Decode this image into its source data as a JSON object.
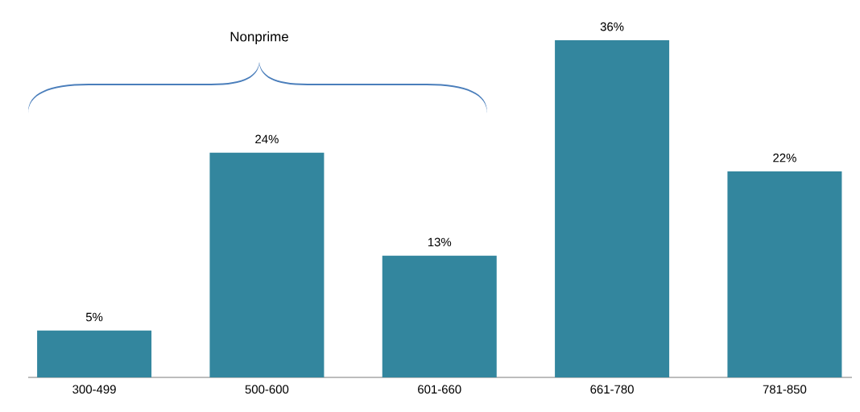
{
  "chart_data": {
    "type": "bar",
    "categories": [
      "300-499",
      "500-600",
      "601-660",
      "661-780",
      "781-850"
    ],
    "values": [
      5,
      24,
      13,
      36,
      22
    ],
    "value_labels": [
      "5%",
      "24%",
      "13%",
      "36%",
      "22%"
    ],
    "color": "#33869e",
    "annotations": [
      "Nonprime"
    ]
  }
}
